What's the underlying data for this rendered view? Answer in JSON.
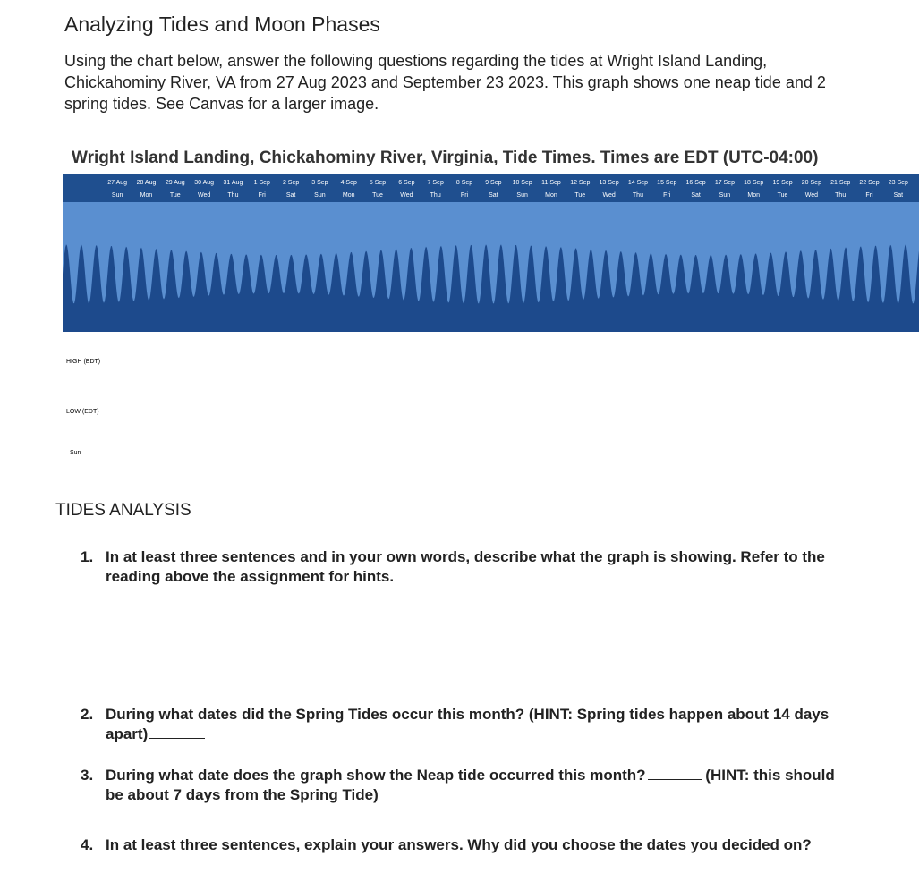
{
  "header": {
    "title": "Analyzing Tides and Moon Phases",
    "intro": "Using the chart below, answer the following questions regarding the tides at Wright Island Landing, Chickahominy River, VA from 27 Aug 2023 and September 23 2023. This graph shows one neap tide and 2 spring tides. See Canvas for a larger image."
  },
  "tide_image": {
    "title": "Wright Island Landing, Chickahominy River, Virginia, Tide Times. Times are EDT (UTC-04:00)",
    "dates": [
      "27 Aug",
      "28 Aug",
      "29 Aug",
      "30 Aug",
      "31 Aug",
      "1 Sep",
      "2 Sep",
      "3 Sep",
      "4 Sep",
      "5 Sep",
      "6 Sep",
      "7 Sep",
      "8 Sep",
      "9 Sep",
      "10 Sep",
      "11 Sep",
      "12 Sep",
      "13 Sep",
      "14 Sep",
      "15 Sep",
      "16 Sep",
      "17 Sep",
      "18 Sep",
      "19 Sep",
      "20 Sep",
      "21 Sep",
      "22 Sep",
      "23 Sep"
    ],
    "weekdays": [
      "Sun",
      "Mon",
      "Tue",
      "Wed",
      "Thu",
      "Fri",
      "Sat",
      "Sun",
      "Mon",
      "Tue",
      "Wed",
      "Thu",
      "Fri",
      "Sat",
      "Sun",
      "Mon",
      "Tue",
      "Wed",
      "Thu",
      "Fri",
      "Sat",
      "Sun",
      "Mon",
      "Tue",
      "Wed",
      "Thu",
      "Fri",
      "Sat"
    ],
    "row_labels": [
      "HIGH (EDT)",
      "LOW (EDT)",
      "Sun"
    ]
  },
  "section": {
    "title": "TIDES ANALYSIS",
    "questions": [
      {
        "number": "1.",
        "text": "In at least three sentences and in your own words, describe what the graph is showing. Refer to the reading above the assignment for hints."
      },
      {
        "number": "2.",
        "text": "During what dates did the Spring Tides occur this month? (HINT: Spring tides happen about 14 days apart)"
      },
      {
        "number": "3.",
        "text": "During what date does the graph show the Neap tide occurred this month?",
        "hint": "(HINT: this should be about 7 days from the Spring Tide)"
      },
      {
        "number": "4.",
        "text": "In at least three sentences, explain your answers. Why did you choose the dates you decided on?"
      }
    ]
  }
}
